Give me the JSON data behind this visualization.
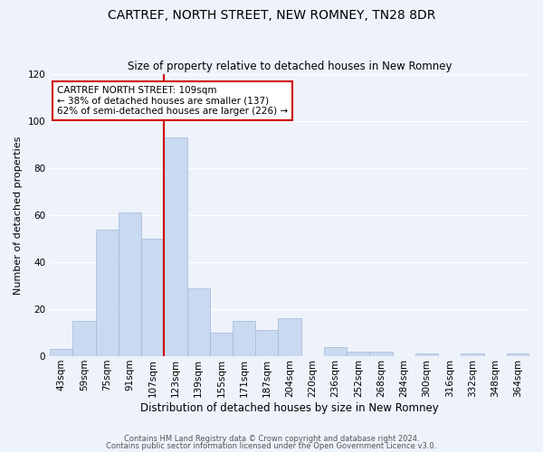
{
  "title": "CARTREF, NORTH STREET, NEW ROMNEY, TN28 8DR",
  "subtitle": "Size of property relative to detached houses in New Romney",
  "xlabel": "Distribution of detached houses by size in New Romney",
  "ylabel": "Number of detached properties",
  "bin_labels": [
    "43sqm",
    "59sqm",
    "75sqm",
    "91sqm",
    "107sqm",
    "123sqm",
    "139sqm",
    "155sqm",
    "171sqm",
    "187sqm",
    "204sqm",
    "220sqm",
    "236sqm",
    "252sqm",
    "268sqm",
    "284sqm",
    "300sqm",
    "316sqm",
    "332sqm",
    "348sqm",
    "364sqm"
  ],
  "bar_values": [
    3,
    15,
    54,
    61,
    50,
    93,
    29,
    10,
    15,
    11,
    16,
    0,
    4,
    2,
    2,
    0,
    1,
    0,
    1,
    0,
    1
  ],
  "bar_color": "#c9d9f0",
  "bar_edge_color": "#a0b8d8",
  "property_size": "109sqm",
  "pct_smaller": 38,
  "n_smaller": 137,
  "pct_larger_semi": 62,
  "n_larger_semi": 226,
  "annotation_box_color": "#ffffff",
  "annotation_box_edge": "#cc0000",
  "vline_color": "#cc0000",
  "ylim": [
    0,
    120
  ],
  "yticks": [
    0,
    20,
    40,
    60,
    80,
    100,
    120
  ],
  "footer_line1": "Contains HM Land Registry data © Crown copyright and database right 2024.",
  "footer_line2": "Contains public sector information licensed under the Open Government Licence v3.0.",
  "bg_color": "#eef2fb",
  "plot_bg_color": "#eef2fb",
  "grid_color": "#ffffff",
  "title_fontsize": 10,
  "subtitle_fontsize": 8.5,
  "ylabel_fontsize": 8,
  "xlabel_fontsize": 8.5,
  "tick_fontsize": 7.5,
  "ann_fontsize": 7.5,
  "footer_fontsize": 6
}
